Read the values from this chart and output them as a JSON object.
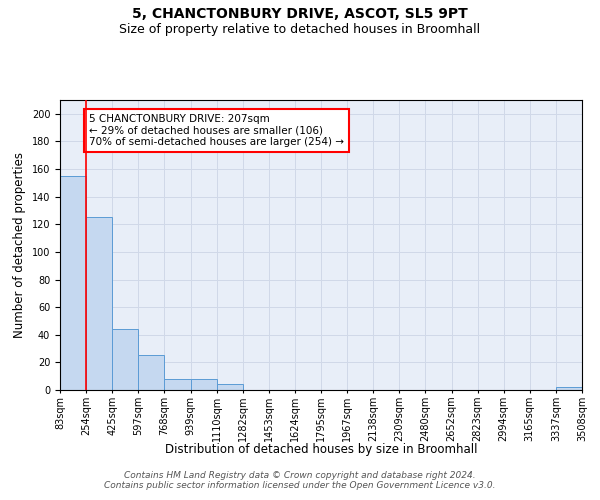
{
  "title": "5, CHANCTONBURY DRIVE, ASCOT, SL5 9PT",
  "subtitle": "Size of property relative to detached houses in Broomhall",
  "xlabel": "Distribution of detached houses by size in Broomhall",
  "ylabel": "Number of detached properties",
  "bar_values": [
    155,
    125,
    44,
    25,
    8,
    8,
    4,
    0,
    0,
    0,
    0,
    0,
    0,
    0,
    0,
    0,
    0,
    0,
    0,
    2
  ],
  "bin_labels": [
    "83sqm",
    "254sqm",
    "425sqm",
    "597sqm",
    "768sqm",
    "939sqm",
    "1110sqm",
    "1282sqm",
    "1453sqm",
    "1624sqm",
    "1795sqm",
    "1967sqm",
    "2138sqm",
    "2309sqm",
    "2480sqm",
    "2652sqm",
    "2823sqm",
    "2994sqm",
    "3165sqm",
    "3337sqm",
    "3508sqm"
  ],
  "bar_color": "#c5d8f0",
  "bar_edge_color": "#5b9bd5",
  "grid_color": "#d0d8e8",
  "background_color": "#e8eef8",
  "red_line_x": 1.0,
  "annotation_text": "5 CHANCTONBURY DRIVE: 207sqm\n← 29% of detached houses are smaller (106)\n70% of semi-detached houses are larger (254) →",
  "annotation_box_color": "white",
  "annotation_box_edge_color": "red",
  "ylim": [
    0,
    210
  ],
  "yticks": [
    0,
    20,
    40,
    60,
    80,
    100,
    120,
    140,
    160,
    180,
    200
  ],
  "footer_text": "Contains HM Land Registry data © Crown copyright and database right 2024.\nContains public sector information licensed under the Open Government Licence v3.0.",
  "title_fontsize": 10,
  "subtitle_fontsize": 9,
  "xlabel_fontsize": 8.5,
  "ylabel_fontsize": 8.5,
  "tick_fontsize": 7,
  "annotation_fontsize": 7.5,
  "footer_fontsize": 6.5
}
